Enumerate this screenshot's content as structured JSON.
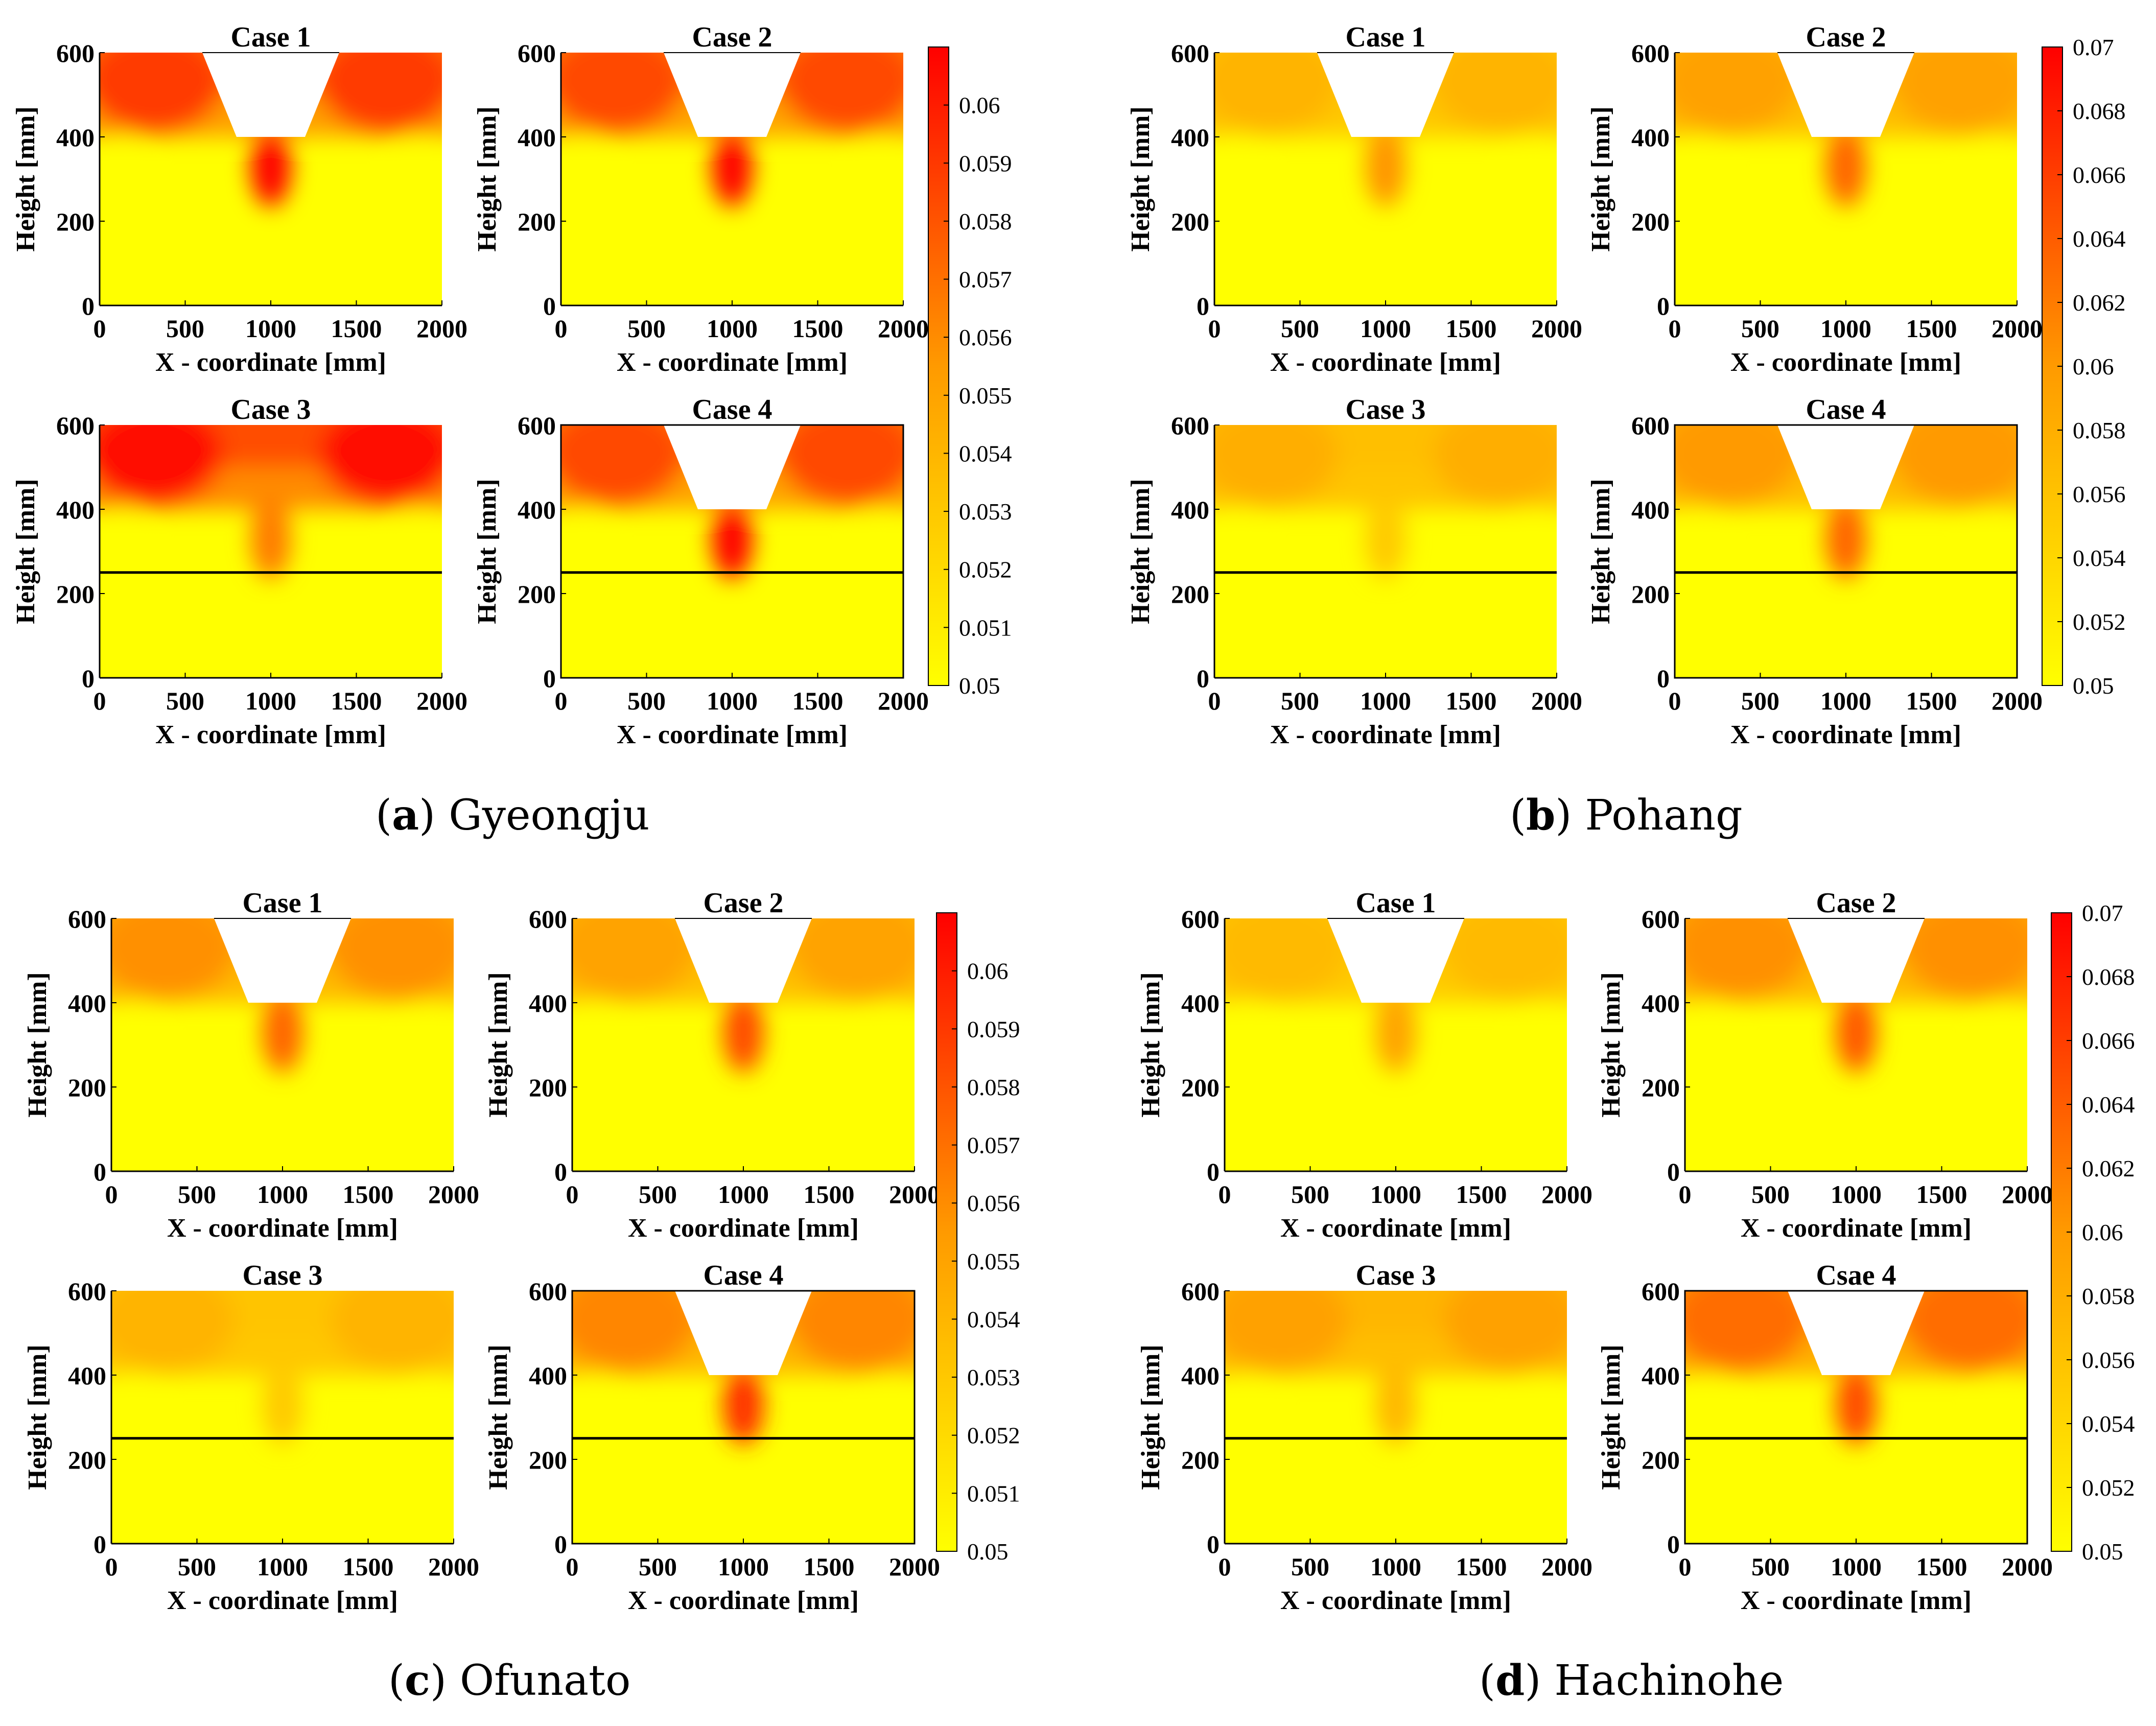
{
  "colors": {
    "low": "#ffff00",
    "mid": "#ff9a00",
    "high": "#ff0000",
    "frame": "#000000",
    "background": "#ffffff"
  },
  "chart_data": [
    {
      "type": "heatmap",
      "group": "a",
      "group_letter": "a",
      "group_name": "Gyeongju",
      "xlabel": "X - coordinate [mm]",
      "ylabel": "Height [mm]",
      "xlim": [
        0,
        2000
      ],
      "ylim": [
        0,
        600
      ],
      "x_ticks": [
        0,
        500,
        1000,
        1500,
        2000
      ],
      "y_ticks": [
        0,
        200,
        400,
        600
      ],
      "colorbar": {
        "min": 0.05,
        "max": 0.061,
        "ticks": [
          "0.05",
          "0.051",
          "0.052",
          "0.053",
          "0.054",
          "0.055",
          "0.056",
          "0.057",
          "0.058",
          "0.059",
          "0.06"
        ]
      },
      "panels": [
        {
          "title": "Case 1",
          "trapezoid": true,
          "layer_line_y": null,
          "intensity": 1.0,
          "top_level": 0.85,
          "plume": 1.0
        },
        {
          "title": "Case 2",
          "trapezoid": true,
          "layer_line_y": null,
          "intensity": 1.0,
          "top_level": 0.8,
          "plume": 1.0
        },
        {
          "title": "Case 3",
          "trapezoid": false,
          "layer_line_y": 250,
          "intensity": 1.0,
          "top_level": 1.0,
          "plume": 0.6
        },
        {
          "title": "Case 4",
          "trapezoid": true,
          "layer_line_y": 250,
          "intensity": 1.0,
          "top_level": 0.8,
          "plume": 1.0
        }
      ]
    },
    {
      "type": "heatmap",
      "group": "b",
      "group_letter": "b",
      "group_name": "Pohang",
      "xlabel": "X - coordinate [mm]",
      "ylabel": "Height [mm]",
      "xlim": [
        0,
        2000
      ],
      "ylim": [
        0,
        600
      ],
      "x_ticks": [
        0,
        500,
        1000,
        1500,
        2000
      ],
      "y_ticks": [
        0,
        200,
        400,
        600
      ],
      "colorbar": {
        "min": 0.05,
        "max": 0.07,
        "ticks": [
          "0.05",
          "0.052",
          "0.054",
          "0.056",
          "0.058",
          "0.06",
          "0.062",
          "0.064",
          "0.066",
          "0.068",
          "0.07"
        ]
      },
      "panels": [
        {
          "title": "Case 1",
          "trapezoid": true,
          "layer_line_y": null,
          "intensity": 0.65,
          "top_level": 0.6,
          "plume": 0.8
        },
        {
          "title": "Case 2",
          "trapezoid": true,
          "layer_line_y": null,
          "intensity": 0.75,
          "top_level": 0.65,
          "plume": 0.9
        },
        {
          "title": "Case 3",
          "trapezoid": false,
          "layer_line_y": 250,
          "intensity": 0.65,
          "top_level": 0.65,
          "plume": 0.4
        },
        {
          "title": "Case 4",
          "trapezoid": true,
          "layer_line_y": 250,
          "intensity": 0.75,
          "top_level": 0.7,
          "plume": 0.9
        }
      ]
    },
    {
      "type": "heatmap",
      "group": "c",
      "group_letter": "c",
      "group_name": "Ofunato",
      "xlabel": "X - coordinate [mm]",
      "ylabel": "Height [mm]",
      "xlim": [
        0,
        2000
      ],
      "ylim": [
        0,
        600
      ],
      "x_ticks": [
        0,
        500,
        1000,
        1500,
        2000
      ],
      "y_ticks": [
        0,
        200,
        400,
        600
      ],
      "colorbar": {
        "min": 0.05,
        "max": 0.061,
        "ticks": [
          "0.05",
          "0.051",
          "0.052",
          "0.053",
          "0.054",
          "0.055",
          "0.056",
          "0.057",
          "0.058",
          "0.059",
          "0.06"
        ]
      },
      "panels": [
        {
          "title": "Case 1",
          "trapezoid": true,
          "layer_line_y": null,
          "intensity": 0.8,
          "top_level": 0.7,
          "plume": 0.85
        },
        {
          "title": "Case 2",
          "trapezoid": true,
          "layer_line_y": null,
          "intensity": 0.8,
          "top_level": 0.6,
          "plume": 0.95
        },
        {
          "title": "Case 3",
          "trapezoid": false,
          "layer_line_y": 250,
          "intensity": 0.65,
          "top_level": 0.6,
          "plume": 0.4
        },
        {
          "title": "Case 4",
          "trapezoid": true,
          "layer_line_y": 250,
          "intensity": 0.85,
          "top_level": 0.7,
          "plume": 1.0
        }
      ]
    },
    {
      "type": "heatmap",
      "group": "d",
      "group_letter": "d",
      "group_name": "Hachinohe",
      "xlabel": "X - coordinate [mm]",
      "ylabel": "Height [mm]",
      "xlim": [
        0,
        2000
      ],
      "ylim": [
        0,
        600
      ],
      "x_ticks": [
        0,
        500,
        1000,
        1500,
        2000
      ],
      "y_ticks": [
        0,
        200,
        400,
        600
      ],
      "colorbar": {
        "min": 0.05,
        "max": 0.07,
        "ticks": [
          "0.05",
          "0.052",
          "0.054",
          "0.056",
          "0.058",
          "0.06",
          "0.062",
          "0.064",
          "0.066",
          "0.068",
          "0.07"
        ]
      },
      "panels": [
        {
          "title": "Case 1",
          "trapezoid": true,
          "layer_line_y": null,
          "intensity": 0.65,
          "top_level": 0.55,
          "plume": 0.7
        },
        {
          "title": "Case 2",
          "trapezoid": true,
          "layer_line_y": null,
          "intensity": 0.8,
          "top_level": 0.7,
          "plume": 0.9
        },
        {
          "title": "Case 3",
          "trapezoid": false,
          "layer_line_y": 250,
          "intensity": 0.7,
          "top_level": 0.7,
          "plume": 0.5
        },
        {
          "title": "Csae 4",
          "trapezoid": true,
          "layer_line_y": 250,
          "intensity": 0.85,
          "top_level": 0.8,
          "plume": 0.9
        }
      ]
    }
  ]
}
